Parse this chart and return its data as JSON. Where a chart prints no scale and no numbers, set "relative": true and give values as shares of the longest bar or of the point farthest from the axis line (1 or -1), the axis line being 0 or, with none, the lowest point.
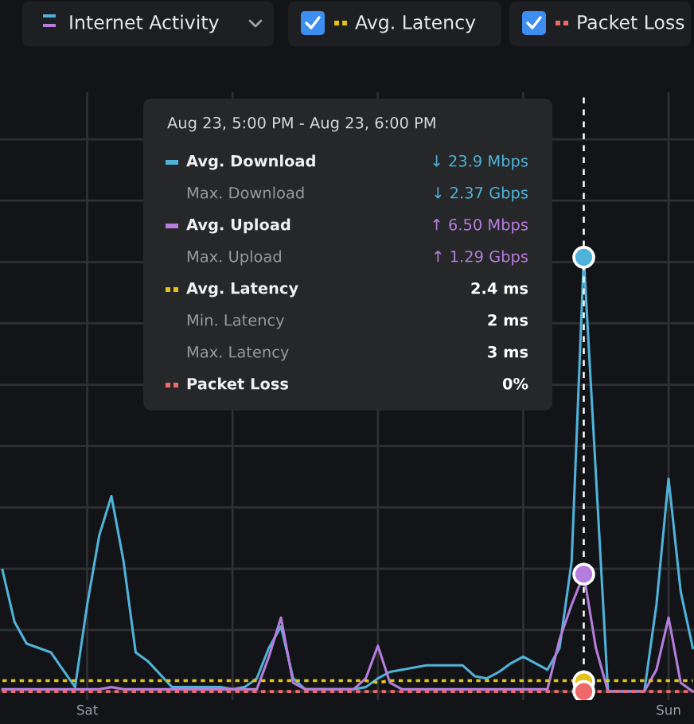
{
  "chart_data": {
    "type": "line",
    "relative": true,
    "title": "Internet Activity",
    "legend": "top",
    "legend_title": "Aug 23, 5:00 PM - Aug 23, 6:00 PM",
    "grid": true,
    "marker": "none",
    "categories": [
      null,
      null,
      null,
      null,
      null,
      null,
      null,
      "Sat",
      null,
      null,
      null,
      null,
      null,
      null,
      null,
      null,
      null,
      null,
      null,
      null,
      null,
      null,
      null,
      null,
      null,
      null,
      null,
      null,
      null,
      null,
      null,
      null,
      null,
      null,
      null,
      null,
      null,
      null,
      null,
      null,
      null,
      null,
      null,
      null,
      null,
      null,
      null,
      null,
      null,
      null,
      null,
      null,
      null,
      null,
      null,
      "Sun",
      null,
      null
    ],
    "annotations": [
      "↓ 23.9 Mbps",
      "Max. Download",
      "↓ 2.37 Gbps",
      "↑ 6.50 Mbps",
      "Max. Upload",
      "↑ 1.29 Gbps",
      "2.4 ms",
      "Min. Latency",
      "2 ms",
      "Max. Latency",
      "3 ms",
      "0%"
    ],
    "series": [
      {
        "name": "Avg. Download",
        "color": "#4fb3d9",
        "line_style": "solid",
        "values": [
          0.28,
          0.16,
          0.11,
          0.1,
          0.09,
          0.05,
          0.01,
          0.2,
          0.36,
          0.45,
          0.3,
          0.09,
          0.07,
          0.04,
          0.01,
          0.01,
          0.01,
          0.01,
          0.01,
          0.005,
          0.01,
          0.03,
          0.1,
          0.15,
          0.03,
          0.005,
          0.005,
          0.005,
          0.005,
          0.005,
          0.01,
          0.03,
          0.045,
          0.05,
          0.055,
          0.06,
          0.06,
          0.06,
          0.06,
          0.035,
          0.03,
          0.045,
          0.065,
          0.08,
          0.065,
          0.05,
          0.1,
          0.3,
          1,
          0.5,
          0,
          0,
          0,
          0,
          0.2,
          0.49,
          0.23,
          0.1
        ]
      },
      {
        "name": "Avg. Upload",
        "color": "#b57edc",
        "line_style": "solid",
        "values": [
          0.005,
          0.005,
          0.005,
          0.005,
          0.005,
          0.005,
          0.005,
          0.005,
          0.005,
          0.01,
          0.005,
          0.005,
          0.005,
          0.005,
          0.005,
          0.005,
          0.005,
          0.005,
          0.005,
          0.005,
          0.005,
          0.005,
          0.08,
          0.17,
          0.02,
          0.005,
          0.005,
          0.005,
          0.005,
          0.005,
          0.03,
          0.105,
          0.02,
          0.005,
          0.005,
          0.005,
          0.005,
          0.005,
          0.005,
          0.005,
          0.005,
          0.005,
          0.005,
          0.005,
          0.005,
          0.005,
          0.12,
          0.2,
          0.27,
          0.1,
          0,
          0,
          0,
          0,
          0.05,
          0.17,
          0.02,
          0
        ]
      },
      {
        "name": "Avg. Latency",
        "color": "#e3c21c",
        "line_style": "dotted",
        "values": [
          0.025,
          0.025,
          0.025,
          0.025,
          0.025,
          0.025,
          0.025,
          0.025,
          0.025,
          0.025,
          0.025,
          0.025,
          0.025,
          0.025,
          0.025,
          0.025,
          0.025,
          0.025,
          0.025,
          0.025,
          0.025,
          0.025,
          0.025,
          0.025,
          0.025,
          0.025,
          0.025,
          0.025,
          0.025,
          0.025,
          0.025,
          0.02,
          0.025,
          0.025,
          0.025,
          0.025,
          0.025,
          0.025,
          0.025,
          0.025,
          0.025,
          0.025,
          0.025,
          0.025,
          0.025,
          0.025,
          0.025,
          0.025,
          0.022,
          0.025,
          0.025,
          0.025,
          0.025,
          0.025,
          0.025,
          0.025,
          0.025,
          0.025
        ]
      },
      {
        "name": "Packet Loss",
        "color": "#ee6a6a",
        "line_style": "dotted",
        "values": [
          0,
          0,
          0,
          0,
          0,
          0,
          0,
          0,
          0,
          0,
          0,
          0,
          0,
          0,
          0,
          0,
          0,
          0,
          0,
          0,
          0,
          0,
          0,
          0,
          0,
          0,
          0,
          0,
          0,
          0,
          0,
          0,
          0,
          0,
          0,
          0,
          0,
          0,
          0,
          0,
          0,
          0,
          0,
          0,
          0,
          0,
          0,
          0,
          0,
          0,
          0,
          0,
          0,
          0,
          0,
          0,
          0,
          0
        ]
      }
    ]
  }
}
